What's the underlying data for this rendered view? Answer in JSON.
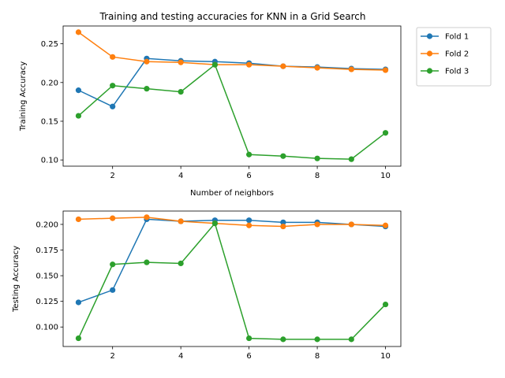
{
  "title": "Training and testing accuracies for KNN in a Grid Search",
  "legend": [
    "Fold 1",
    "Fold 2",
    "Fold 3"
  ],
  "colors": [
    "#1f77b4",
    "#ff7f0e",
    "#2ca02c"
  ],
  "chart_data": [
    {
      "type": "line",
      "title": "Training and testing accuracies for KNN in a Grid Search",
      "xlabel": "Number of neighbors",
      "ylabel": "Training Accuracy",
      "x": [
        1,
        2,
        3,
        4,
        5,
        6,
        7,
        8,
        9,
        10
      ],
      "xlim": [
        0.55,
        10.45
      ],
      "ylim": [
        0.092,
        0.273
      ],
      "xticks": [
        2,
        4,
        6,
        8,
        10
      ],
      "yticks": [
        0.1,
        0.15,
        0.2,
        0.25
      ],
      "ytick_labels": [
        "0.10",
        "0.15",
        "0.20",
        "0.25"
      ],
      "legend_position": "outside-top-right",
      "series": [
        {
          "name": "Fold 1",
          "values": [
            0.19,
            0.169,
            0.231,
            0.228,
            0.227,
            0.225,
            0.221,
            0.22,
            0.218,
            0.217
          ]
        },
        {
          "name": "Fold 2",
          "values": [
            0.265,
            0.233,
            0.227,
            0.226,
            0.223,
            0.223,
            0.221,
            0.219,
            0.217,
            0.216
          ]
        },
        {
          "name": "Fold 3",
          "values": [
            0.157,
            0.196,
            0.192,
            0.188,
            0.223,
            0.107,
            0.105,
            0.102,
            0.101,
            0.135
          ]
        }
      ]
    },
    {
      "type": "line",
      "title": "",
      "xlabel": "",
      "ylabel": "Testing Accuracy",
      "x": [
        1,
        2,
        3,
        4,
        5,
        6,
        7,
        8,
        9,
        10
      ],
      "xlim": [
        0.55,
        10.45
      ],
      "ylim": [
        0.081,
        0.213
      ],
      "xticks": [
        2,
        4,
        6,
        8,
        10
      ],
      "yticks": [
        0.1,
        0.125,
        0.15,
        0.175,
        0.2
      ],
      "ytick_labels": [
        "0.100",
        "0.125",
        "0.150",
        "0.175",
        "0.200"
      ],
      "series": [
        {
          "name": "Fold 1",
          "values": [
            0.124,
            0.136,
            0.205,
            0.203,
            0.204,
            0.204,
            0.202,
            0.202,
            0.2,
            0.198
          ]
        },
        {
          "name": "Fold 2",
          "values": [
            0.205,
            0.206,
            0.207,
            0.203,
            0.201,
            0.199,
            0.198,
            0.2,
            0.2,
            0.199
          ]
        },
        {
          "name": "Fold 3",
          "values": [
            0.089,
            0.161,
            0.163,
            0.162,
            0.201,
            0.089,
            0.088,
            0.088,
            0.088,
            0.122
          ]
        }
      ]
    }
  ]
}
